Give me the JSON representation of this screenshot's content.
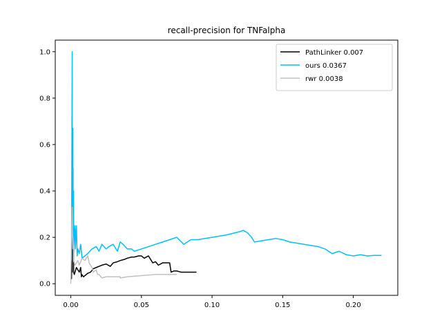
{
  "chart_data": {
    "type": "line",
    "title": "recall-precision for TNFalpha",
    "xlabel": "",
    "ylabel": "",
    "xlim": [
      -0.011,
      0.2315
    ],
    "ylim": [
      -0.05,
      1.05
    ],
    "xticks": [
      0.0,
      0.05,
      0.1,
      0.15,
      0.2
    ],
    "xtick_labels": [
      "0.00",
      "0.05",
      "0.10",
      "0.15",
      "0.20"
    ],
    "yticks": [
      0.0,
      0.2,
      0.4,
      0.6,
      0.8,
      1.0
    ],
    "ytick_labels": [
      "0.0",
      "0.2",
      "0.4",
      "0.6",
      "0.8",
      "1.0"
    ],
    "grid": false,
    "legend_position": "top-right",
    "series": [
      {
        "name": "PathLinker 0.007",
        "color": "#000000",
        "x": [
          0.0005,
          0.001,
          0.001,
          0.0015,
          0.0015,
          0.002,
          0.002,
          0.0025,
          0.003,
          0.004,
          0.005,
          0.006,
          0.007,
          0.0075,
          0.0078,
          0.009,
          0.012,
          0.014,
          0.016,
          0.018,
          0.02,
          0.022,
          0.025,
          0.028,
          0.03,
          0.033,
          0.035,
          0.038,
          0.04,
          0.043,
          0.045,
          0.048,
          0.05,
          0.051,
          0.052,
          0.055,
          0.057,
          0.058,
          0.06,
          0.062,
          0.065,
          0.068,
          0.07,
          0.071,
          0.073,
          0.075,
          0.078,
          0.08,
          0.085,
          0.089
        ],
        "y": [
          0.02,
          0.14,
          0.05,
          0.5,
          0.33,
          0.25,
          0.05,
          0.04,
          0.05,
          0.07,
          0.06,
          0.05,
          0.07,
          0.03,
          0.04,
          0.03,
          0.045,
          0.05,
          0.065,
          0.07,
          0.075,
          0.08,
          0.085,
          0.075,
          0.09,
          0.095,
          0.1,
          0.105,
          0.11,
          0.115,
          0.115,
          0.12,
          0.12,
          0.115,
          0.11,
          0.12,
          0.1,
          0.09,
          0.095,
          0.08,
          0.09,
          0.09,
          0.09,
          0.05,
          0.055,
          0.055,
          0.05,
          0.05,
          0.05,
          0.05
        ]
      },
      {
        "name": "ours 0.0367",
        "color": "#00bfff",
        "x": [
          0.0005,
          0.001,
          0.001,
          0.0015,
          0.0015,
          0.002,
          0.002,
          0.0025,
          0.003,
          0.0032,
          0.004,
          0.0045,
          0.005,
          0.006,
          0.007,
          0.008,
          0.01,
          0.012,
          0.015,
          0.018,
          0.02,
          0.022,
          0.025,
          0.027,
          0.03,
          0.033,
          0.035,
          0.037,
          0.04,
          0.043,
          0.045,
          0.05,
          0.055,
          0.06,
          0.065,
          0.07,
          0.075,
          0.08,
          0.085,
          0.09,
          0.1,
          0.11,
          0.12,
          0.122,
          0.125,
          0.128,
          0.13,
          0.135,
          0.14,
          0.145,
          0.15,
          0.155,
          0.16,
          0.165,
          0.17,
          0.175,
          0.18,
          0.185,
          0.19,
          0.195,
          0.2,
          0.205,
          0.21,
          0.215,
          0.22
        ],
        "y": [
          0.1,
          1.0,
          0.25,
          0.67,
          0.25,
          0.4,
          0.15,
          0.2,
          0.25,
          0.15,
          0.25,
          0.12,
          0.15,
          0.13,
          0.17,
          0.11,
          0.12,
          0.13,
          0.15,
          0.16,
          0.14,
          0.17,
          0.15,
          0.16,
          0.17,
          0.14,
          0.18,
          0.17,
          0.15,
          0.15,
          0.14,
          0.15,
          0.16,
          0.17,
          0.18,
          0.19,
          0.2,
          0.17,
          0.19,
          0.19,
          0.2,
          0.21,
          0.225,
          0.23,
          0.22,
          0.2,
          0.18,
          0.185,
          0.19,
          0.195,
          0.19,
          0.18,
          0.175,
          0.17,
          0.165,
          0.16,
          0.15,
          0.13,
          0.14,
          0.125,
          0.12,
          0.125,
          0.12,
          0.122,
          0.122
        ]
      },
      {
        "name": "rwr 0.0038",
        "color": "#c0c0c0",
        "x": [
          0.0,
          0.001,
          0.0015,
          0.0015,
          0.002,
          0.002,
          0.003,
          0.004,
          0.005,
          0.006,
          0.008,
          0.01,
          0.012,
          0.013,
          0.015,
          0.016,
          0.018,
          0.019,
          0.02,
          0.022,
          0.025,
          0.03,
          0.035,
          0.035,
          0.04,
          0.05,
          0.06,
          0.07,
          0.075
        ],
        "y": [
          0.0,
          0.33,
          0.15,
          0.2,
          0.13,
          0.1,
          0.08,
          0.09,
          0.1,
          0.08,
          0.11,
          0.1,
          0.12,
          0.09,
          0.07,
          0.05,
          0.06,
          0.04,
          0.04,
          0.025,
          0.03,
          0.03,
          0.03,
          0.025,
          0.03,
          0.035,
          0.04,
          0.04,
          0.04
        ]
      }
    ]
  }
}
